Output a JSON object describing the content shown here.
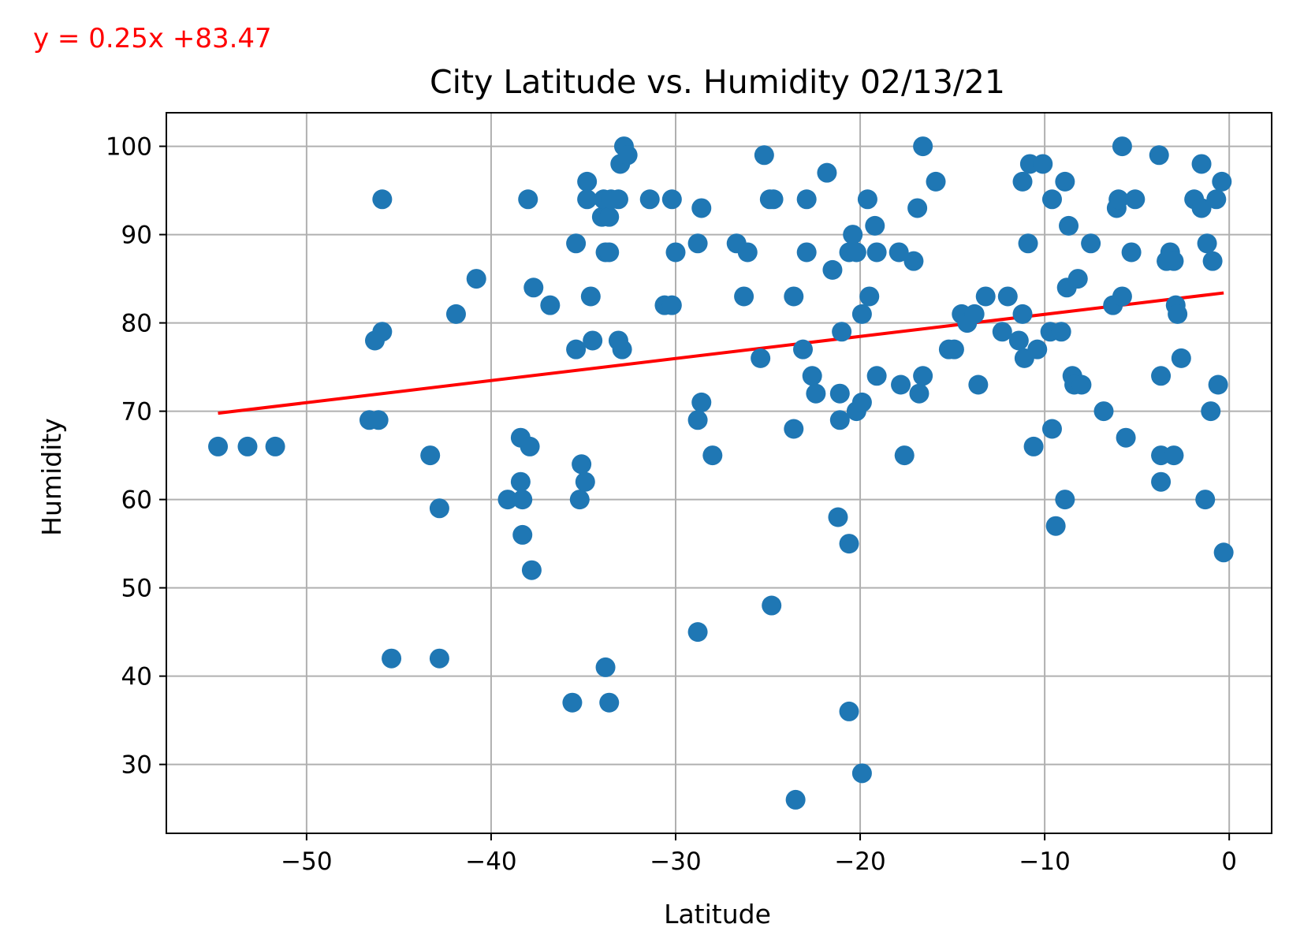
{
  "chart_data": {
    "type": "scatter",
    "title": "City Latitude vs. Humidity 02/13/21",
    "xlabel": "Latitude",
    "ylabel": "Humidity",
    "xlim": [
      -57.6,
      2.3
    ],
    "ylim": [
      22.2,
      103.8
    ],
    "xticks": [
      -50,
      -40,
      -30,
      -20,
      -10,
      0
    ],
    "yticks": [
      30,
      40,
      50,
      60,
      70,
      80,
      90,
      100
    ],
    "xtick_labels": [
      "−50",
      "−40",
      "−30",
      "−20",
      "−10",
      "0"
    ],
    "ytick_labels": [
      "30",
      "40",
      "50",
      "60",
      "70",
      "80",
      "90",
      "100"
    ],
    "grid": true,
    "point_color": "#1f77b4",
    "points": [
      [
        -54.8,
        66
      ],
      [
        -53.2,
        66
      ],
      [
        -51.7,
        66
      ],
      [
        -46.6,
        69
      ],
      [
        -46.1,
        69
      ],
      [
        -46.3,
        78
      ],
      [
        -45.9,
        79
      ],
      [
        -45.9,
        94
      ],
      [
        -45.4,
        42
      ],
      [
        -43.3,
        65
      ],
      [
        -42.8,
        59
      ],
      [
        -42.8,
        42
      ],
      [
        -41.9,
        81
      ],
      [
        -40.8,
        85
      ],
      [
        -39.1,
        60
      ],
      [
        -38.4,
        67
      ],
      [
        -38.4,
        62
      ],
      [
        -38.3,
        60
      ],
      [
        -38.3,
        56
      ],
      [
        -38.0,
        94
      ],
      [
        -37.9,
        66
      ],
      [
        -37.8,
        52
      ],
      [
        -37.7,
        84
      ],
      [
        -36.8,
        82
      ],
      [
        -35.6,
        37
      ],
      [
        -35.4,
        89
      ],
      [
        -35.4,
        77
      ],
      [
        -35.2,
        60
      ],
      [
        -35.1,
        64
      ],
      [
        -34.9,
        62
      ],
      [
        -34.8,
        96
      ],
      [
        -34.8,
        94
      ],
      [
        -34.6,
        83
      ],
      [
        -34.5,
        78
      ],
      [
        -34.0,
        92
      ],
      [
        -33.9,
        94
      ],
      [
        -33.8,
        88
      ],
      [
        -33.8,
        41
      ],
      [
        -33.6,
        88
      ],
      [
        -33.6,
        92
      ],
      [
        -33.5,
        94
      ],
      [
        -33.6,
        37
      ],
      [
        -33.1,
        94
      ],
      [
        -33.1,
        78
      ],
      [
        -33.0,
        98
      ],
      [
        -32.9,
        77
      ],
      [
        -32.8,
        100
      ],
      [
        -32.6,
        99
      ],
      [
        -31.4,
        94
      ],
      [
        -30.6,
        82
      ],
      [
        -30.2,
        82
      ],
      [
        -30.2,
        94
      ],
      [
        -30.0,
        88
      ],
      [
        -28.8,
        89
      ],
      [
        -28.8,
        69
      ],
      [
        -28.8,
        45
      ],
      [
        -28.6,
        71
      ],
      [
        -28.6,
        93
      ],
      [
        -28.0,
        65
      ],
      [
        -26.7,
        89
      ],
      [
        -26.3,
        83
      ],
      [
        -26.1,
        88
      ],
      [
        -25.4,
        76
      ],
      [
        -25.2,
        99
      ],
      [
        -24.9,
        94
      ],
      [
        -24.7,
        94
      ],
      [
        -24.8,
        48
      ],
      [
        -23.6,
        83
      ],
      [
        -23.6,
        68
      ],
      [
        -23.5,
        26
      ],
      [
        -23.1,
        77
      ],
      [
        -22.9,
        88
      ],
      [
        -22.9,
        94
      ],
      [
        -22.6,
        74
      ],
      [
        -22.4,
        72
      ],
      [
        -21.8,
        97
      ],
      [
        -21.5,
        86
      ],
      [
        -21.2,
        58
      ],
      [
        -21.1,
        72
      ],
      [
        -21.1,
        69
      ],
      [
        -21.0,
        79
      ],
      [
        -20.6,
        88
      ],
      [
        -20.6,
        55
      ],
      [
        -20.6,
        36
      ],
      [
        -20.4,
        90
      ],
      [
        -20.2,
        88
      ],
      [
        -20.2,
        70
      ],
      [
        -19.9,
        71
      ],
      [
        -19.9,
        81
      ],
      [
        -19.9,
        29
      ],
      [
        -19.6,
        94
      ],
      [
        -19.5,
        83
      ],
      [
        -19.2,
        91
      ],
      [
        -19.1,
        88
      ],
      [
        -19.1,
        74
      ],
      [
        -17.9,
        88
      ],
      [
        -17.8,
        73
      ],
      [
        -17.6,
        65
      ],
      [
        -17.1,
        87
      ],
      [
        -16.9,
        93
      ],
      [
        -16.8,
        72
      ],
      [
        -16.6,
        74
      ],
      [
        -16.6,
        100
      ],
      [
        -15.9,
        96
      ],
      [
        -15.2,
        77
      ],
      [
        -14.9,
        77
      ],
      [
        -14.5,
        81
      ],
      [
        -14.2,
        80
      ],
      [
        -13.8,
        81
      ],
      [
        -13.6,
        73
      ],
      [
        -13.2,
        83
      ],
      [
        -12.3,
        79
      ],
      [
        -12.0,
        83
      ],
      [
        -11.4,
        78
      ],
      [
        -11.2,
        81
      ],
      [
        -11.2,
        96
      ],
      [
        -11.1,
        76
      ],
      [
        -10.9,
        89
      ],
      [
        -10.8,
        98
      ],
      [
        -10.6,
        66
      ],
      [
        -10.4,
        77
      ],
      [
        -10.1,
        98
      ],
      [
        -9.7,
        79
      ],
      [
        -9.6,
        94
      ],
      [
        -9.6,
        68
      ],
      [
        -9.4,
        57
      ],
      [
        -9.1,
        79
      ],
      [
        -8.9,
        96
      ],
      [
        -8.9,
        60
      ],
      [
        -8.8,
        84
      ],
      [
        -8.7,
        91
      ],
      [
        -8.5,
        74
      ],
      [
        -8.4,
        73
      ],
      [
        -8.2,
        85
      ],
      [
        -8.0,
        73
      ],
      [
        -7.5,
        89
      ],
      [
        -6.8,
        70
      ],
      [
        -6.3,
        82
      ],
      [
        -6.1,
        93
      ],
      [
        -6.0,
        94
      ],
      [
        -5.8,
        83
      ],
      [
        -5.8,
        100
      ],
      [
        -5.6,
        67
      ],
      [
        -5.3,
        88
      ],
      [
        -5.1,
        94
      ],
      [
        -3.8,
        99
      ],
      [
        -3.7,
        65
      ],
      [
        -3.7,
        74
      ],
      [
        -3.7,
        62
      ],
      [
        -3.4,
        87
      ],
      [
        -3.2,
        88
      ],
      [
        -3.0,
        87
      ],
      [
        -3.0,
        65
      ],
      [
        -2.9,
        82
      ],
      [
        -2.8,
        81
      ],
      [
        -2.6,
        76
      ],
      [
        -1.9,
        94
      ],
      [
        -1.5,
        98
      ],
      [
        -1.5,
        93
      ],
      [
        -1.3,
        60
      ],
      [
        -1.2,
        89
      ],
      [
        -1.0,
        70
      ],
      [
        -0.9,
        87
      ],
      [
        -0.7,
        94
      ],
      [
        -0.6,
        73
      ],
      [
        -0.4,
        96
      ],
      [
        -0.3,
        54
      ]
    ],
    "regression": {
      "slope": 0.25,
      "intercept": 83.47,
      "x_range": [
        -54.8,
        -0.3
      ],
      "color": "#ff0000",
      "equation_label": "y = 0.25x +83.47",
      "label_color": "#ff0000"
    }
  }
}
